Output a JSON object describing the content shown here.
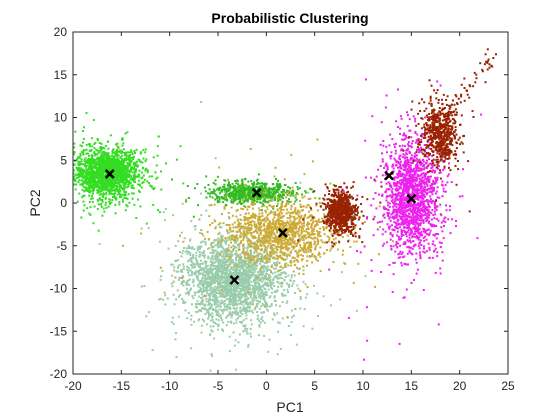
{
  "chart_data": {
    "type": "scatter",
    "title": "Probabilistic Clustering",
    "xlabel": "PC1",
    "ylabel": "PC2",
    "xlim": [
      -20,
      25
    ],
    "ylim": [
      -20,
      20
    ],
    "xticks": [
      -20,
      -15,
      -10,
      -5,
      0,
      5,
      10,
      15,
      20,
      25
    ],
    "yticks": [
      -20,
      -15,
      -10,
      -5,
      0,
      5,
      10,
      15,
      20
    ],
    "grid": false,
    "legend": "none",
    "clusters": [
      {
        "color": "#33dd22",
        "cx": -16.5,
        "cy": 3.5,
        "sx": 1.6,
        "sy": 1.4,
        "n": 1800
      },
      {
        "color": "#33bb22",
        "cx": -1.5,
        "cy": 1.2,
        "sx": 2.0,
        "sy": 0.6,
        "n": 700
      },
      {
        "color": "#99ccaa",
        "cx": -3.5,
        "cy": -9.0,
        "sx": 2.6,
        "sy": 2.5,
        "n": 2200
      },
      {
        "color": "#ccaa33",
        "cx": 1.5,
        "cy": -3.5,
        "sx": 2.8,
        "sy": 1.8,
        "n": 1200
      },
      {
        "color": "#992200",
        "cx": 7.8,
        "cy": -1.0,
        "sx": 0.8,
        "sy": 1.2,
        "n": 700
      },
      {
        "color": "#ee22ee",
        "cx": 15.0,
        "cy": 0.5,
        "sx": 1.4,
        "sy": 3.2,
        "n": 1600
      },
      {
        "color": "#992200",
        "cx": 18.0,
        "cy": 8.0,
        "sx": 0.9,
        "sy": 1.8,
        "n": 600
      }
    ],
    "centroids": [
      {
        "x": -16.2,
        "y": 3.4
      },
      {
        "x": -1.0,
        "y": 1.2
      },
      {
        "x": 1.7,
        "y": -3.5
      },
      {
        "x": -3.3,
        "y": -9.0
      },
      {
        "x": 12.7,
        "y": 3.2
      },
      {
        "x": 15.0,
        "y": 0.5
      }
    ]
  }
}
